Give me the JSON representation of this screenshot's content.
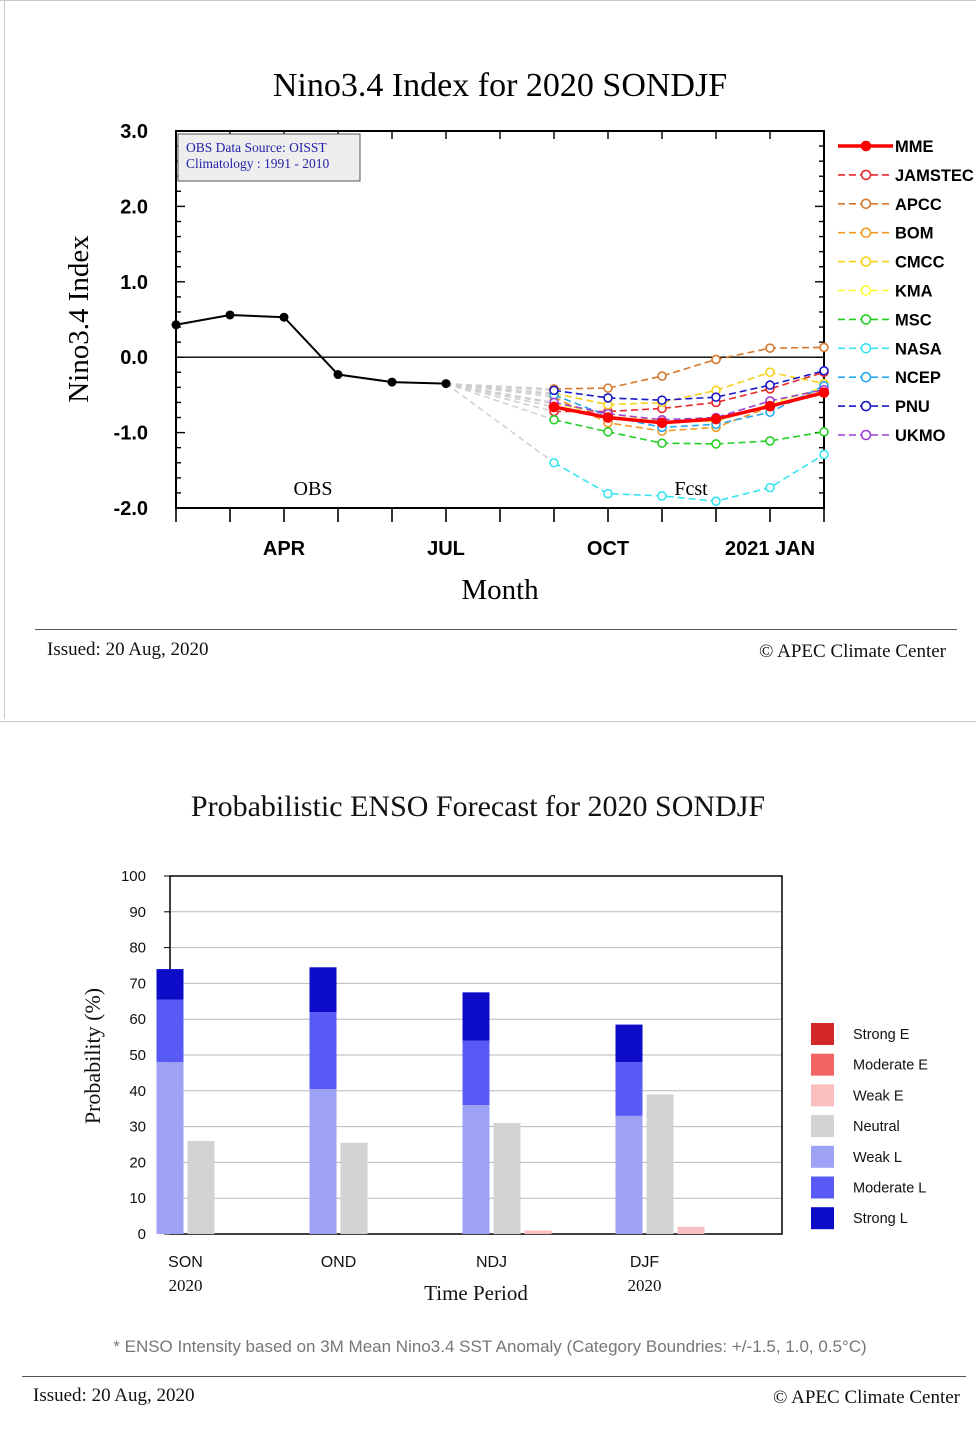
{
  "colors": {
    "MME": "#ff0000",
    "JAMSTEC": "#e8272b",
    "APCC": "#d4782e",
    "BOM": "#f39a20",
    "CMCC": "#f5d21a",
    "KMA": "#ffff33",
    "MSC": "#25d025",
    "NASA": "#35e6f0",
    "NCEP": "#26a8f0",
    "PNU": "#1a19c8",
    "UKMO": "#9b3fd6",
    "Strong E": "#d42727",
    "Moderate E": "#f26464",
    "Weak E": "#fbbebe",
    "Neutral": "#d3d3d3",
    "Weak L": "#9ea2f5",
    "Moderate L": "#5959f5",
    "Strong L": "#0c0cc8"
  },
  "top": {
    "issued": "Issued: 20 Aug, 2020",
    "copyright": "© APEC Climate Center",
    "chart_data": {
      "type": "line",
      "title": "Nino3.4 Index for 2020 SONDJF",
      "xlabel": "Month",
      "ylabel": "Nino3.4 Index",
      "ylim": [
        -2.0,
        3.0
      ],
      "yticks": [
        "3.0",
        "2.0",
        "1.0",
        "0.0",
        "-1.0",
        "-2.0"
      ],
      "xtick_labels": [
        {
          "month": 4,
          "label": "APR"
        },
        {
          "month": 7,
          "label": "JUL"
        },
        {
          "month": 10,
          "label": "OCT"
        },
        {
          "month": 13,
          "label": "2021 JAN"
        }
      ],
      "info_box": [
        "OBS Data Source: OISST",
        "Climatology : 1991 - 2010"
      ],
      "annotations": [
        "OBS",
        "Fcst"
      ],
      "obs": {
        "months": [
          "2020-02",
          "2020-03",
          "2020-04",
          "2020-05",
          "2020-06",
          "2020-07"
        ],
        "values": [
          0.43,
          0.56,
          0.53,
          -0.23,
          -0.33,
          -0.35
        ]
      },
      "forecast_months": [
        "2020-09",
        "2020-10",
        "2020-11",
        "2020-12",
        "2021-01",
        "2021-02"
      ],
      "series": [
        {
          "name": "MME",
          "values": [
            -0.66,
            -0.8,
            -0.87,
            -0.82,
            -0.65,
            -0.47
          ]
        },
        {
          "name": "JAMSTEC",
          "values": [
            -0.72,
            -0.72,
            -0.68,
            -0.6,
            -0.42,
            -0.2
          ]
        },
        {
          "name": "APCC",
          "values": [
            -0.42,
            -0.41,
            -0.25,
            -0.03,
            0.12,
            0.13
          ]
        },
        {
          "name": "BOM",
          "values": [
            -0.53,
            -0.87,
            -0.98,
            -0.93,
            -0.66,
            -0.43
          ]
        },
        {
          "name": "CMCC",
          "values": [
            -0.48,
            -0.63,
            -0.6,
            -0.44,
            -0.2,
            -0.35
          ]
        },
        {
          "name": "KMA",
          "values": [
            -0.62,
            -0.75,
            -0.85,
            -0.85,
            -0.62,
            -0.4
          ]
        },
        {
          "name": "MSC",
          "values": [
            -0.83,
            -0.99,
            -1.14,
            -1.15,
            -1.11,
            -0.99
          ]
        },
        {
          "name": "NASA",
          "values": [
            -1.4,
            -1.81,
            -1.84,
            -1.91,
            -1.73,
            -1.29
          ]
        },
        {
          "name": "NCEP",
          "values": [
            -0.5,
            -0.78,
            -0.93,
            -0.89,
            -0.73,
            -0.38
          ]
        },
        {
          "name": "PNU",
          "values": [
            -0.44,
            -0.54,
            -0.57,
            -0.53,
            -0.37,
            -0.18
          ]
        },
        {
          "name": "UKMO",
          "values": [
            -0.6,
            -0.75,
            -0.83,
            -0.8,
            -0.58,
            -0.43
          ]
        }
      ]
    }
  },
  "bottom": {
    "note": "* ENSO Intensity based on 3M Mean Nino3.4 SST Anomaly (Category Boundries: +/-1.5, 1.0, 0.5°C)",
    "issued": "Issued: 20 Aug, 2020",
    "copyright": "© APEC Climate Center",
    "chart_data": {
      "type": "bar",
      "title": "Probabilistic ENSO Forecast for 2020 SONDJF",
      "xlabel": "Time Period",
      "ylabel": "Probability (%)",
      "ylim": [
        0,
        100
      ],
      "yticks": [
        "0",
        "10",
        "20",
        "30",
        "40",
        "50",
        "60",
        "70",
        "80",
        "90",
        "100"
      ],
      "categories": [
        "SON",
        "OND",
        "NDJ",
        "DJF"
      ],
      "category_sublabels": [
        "2020",
        "",
        "",
        "2020"
      ],
      "legend": [
        "Strong E",
        "Moderate E",
        "Weak E",
        "Neutral",
        "Weak L",
        "Moderate L",
        "Strong L"
      ],
      "la_nina": {
        "Weak L": [
          48,
          40.5,
          36,
          33
        ],
        "Moderate L": [
          17.5,
          21.5,
          18,
          15
        ],
        "Strong L": [
          8.5,
          12.5,
          13.5,
          10.5
        ]
      },
      "neutral": [
        26,
        25.5,
        31,
        39
      ],
      "el_nino": {
        "Weak E": [
          0,
          0,
          1,
          2
        ],
        "Moderate E": [
          0,
          0,
          0,
          0
        ],
        "Strong E": [
          0,
          0,
          0,
          0
        ]
      }
    }
  }
}
